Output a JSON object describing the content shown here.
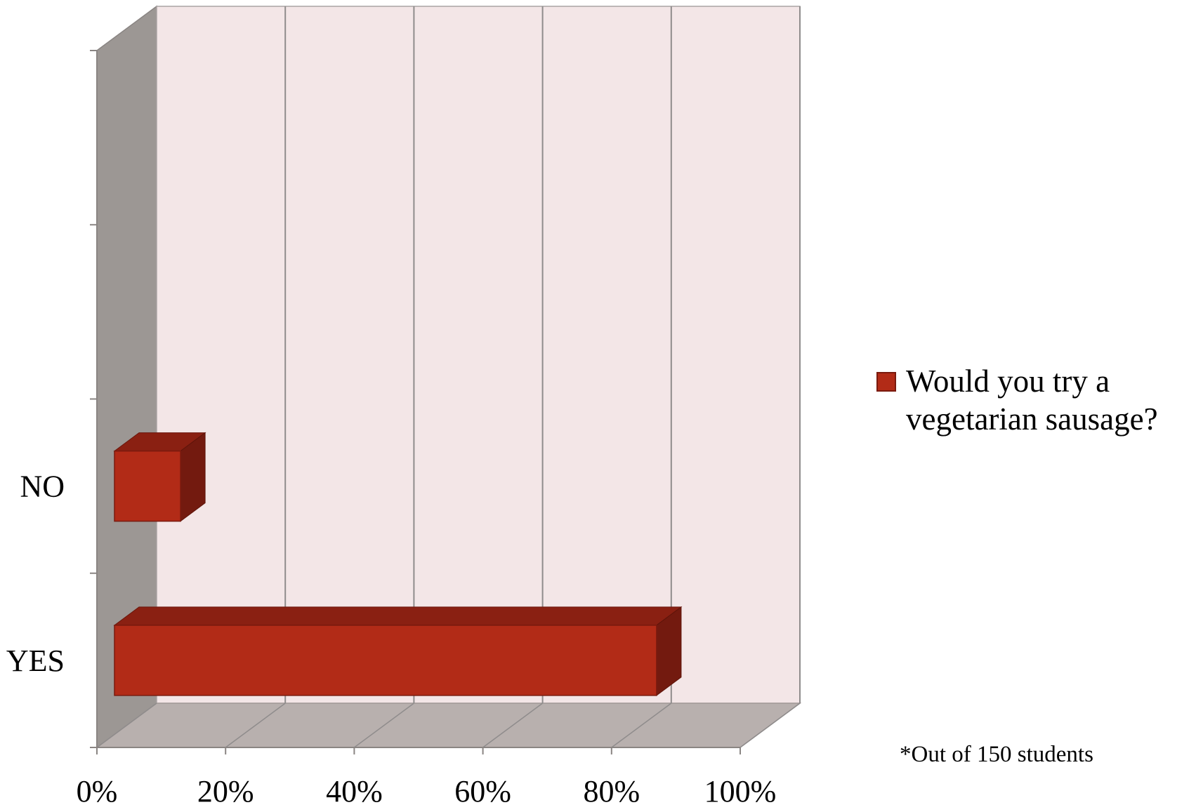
{
  "chart_data": {
    "type": "bar",
    "orientation": "horizontal",
    "categories": [
      "NO",
      "YES"
    ],
    "series": [
      {
        "name": "Would you try a vegetarian sausage?",
        "values": [
          13,
          87
        ]
      }
    ],
    "xlim": [
      0,
      100
    ],
    "x_ticks": [
      "0%",
      "20%",
      "40%",
      "60%",
      "80%",
      "100%"
    ],
    "grid": true,
    "legend_position": "right",
    "note": "*Out of 150 students",
    "colors": {
      "bar_front": "#b22b17",
      "bar_top": "#8a2012",
      "bar_side": "#731a0f",
      "back_wall": "#f3e6e7",
      "side_wall": "#9c9794",
      "floor": "#b8b0ae",
      "grid": "#8f8c8c"
    }
  }
}
